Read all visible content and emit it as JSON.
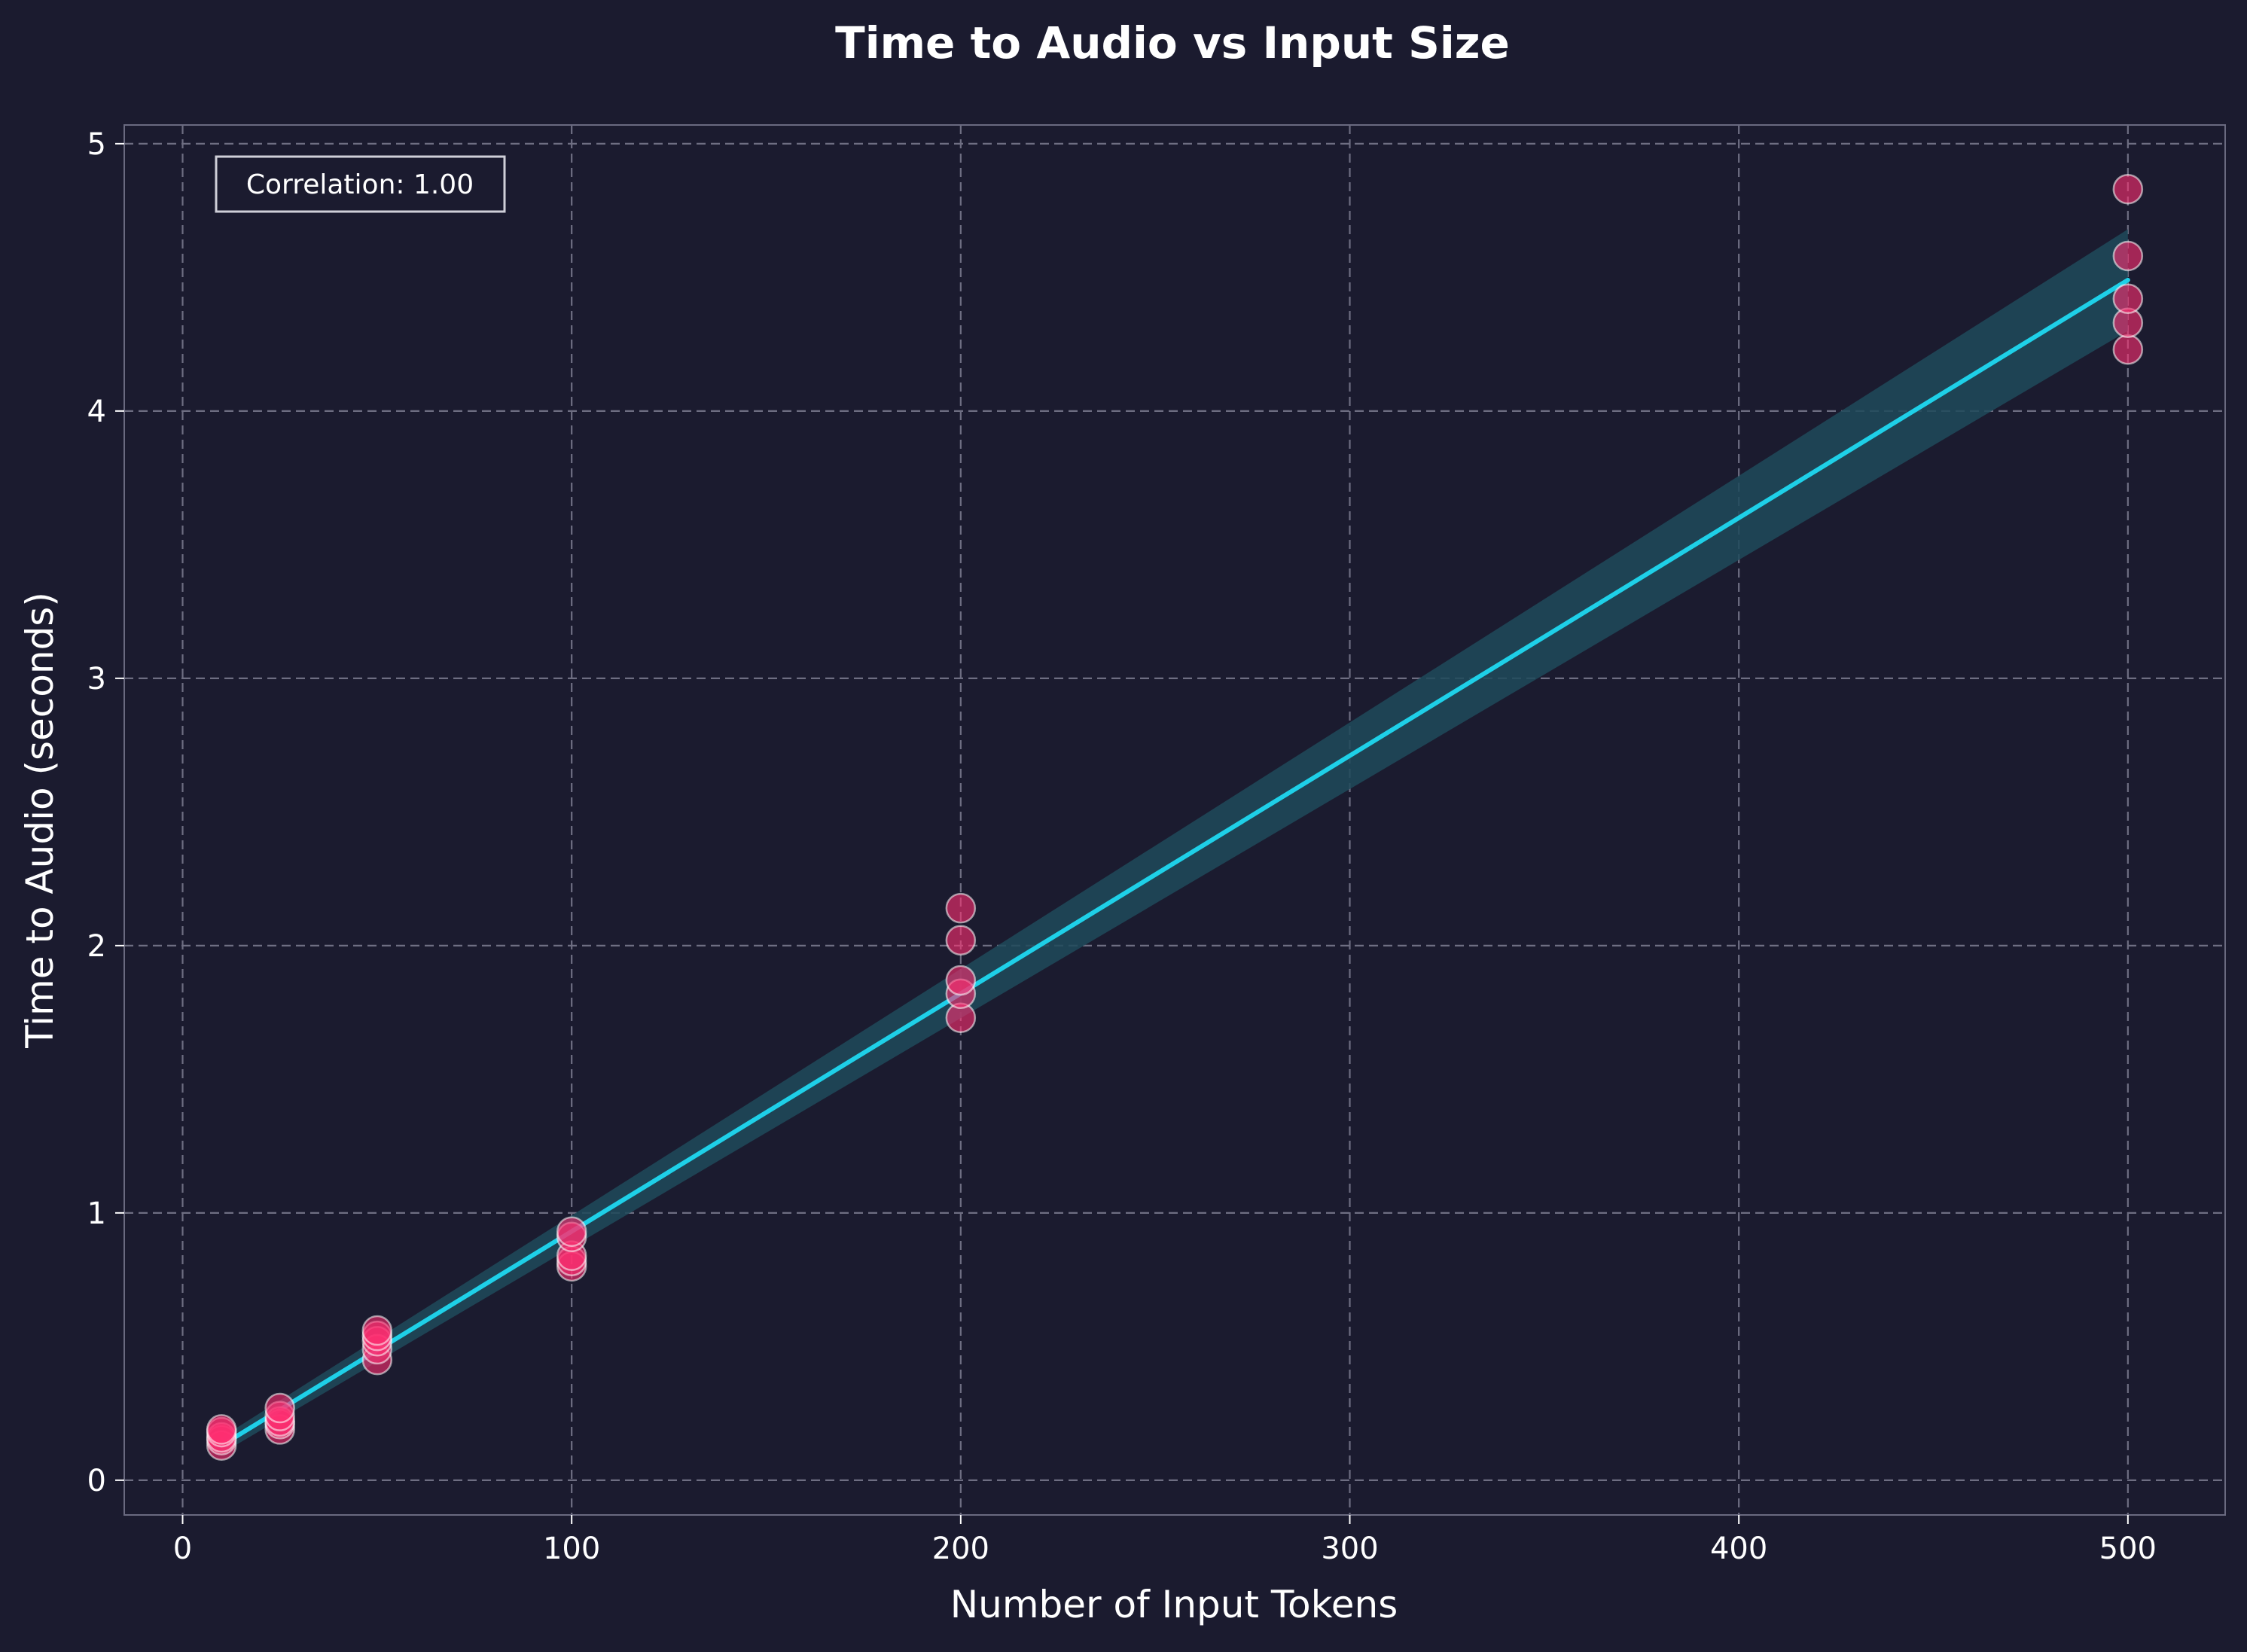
{
  "chart_data": {
    "type": "scatter",
    "title": "Time to Audio vs Input Size",
    "xlabel": "Number of Input Tokens",
    "ylabel": "Time to Audio (seconds)",
    "xlim": [
      -15,
      525
    ],
    "ylim": [
      -0.13,
      5.07
    ],
    "xticks": [
      0,
      100,
      200,
      300,
      400,
      500
    ],
    "yticks": [
      0,
      1,
      2,
      3,
      4,
      5
    ],
    "grid": true,
    "annotation": {
      "text": "Correlation: 1.00",
      "placement": "top-left"
    },
    "points": {
      "color": "#ff2e72",
      "edge_color": "#ffffff",
      "values": [
        {
          "x": 10,
          "y": 0.13
        },
        {
          "x": 10,
          "y": 0.15
        },
        {
          "x": 10,
          "y": 0.16
        },
        {
          "x": 10,
          "y": 0.18
        },
        {
          "x": 10,
          "y": 0.19
        },
        {
          "x": 25,
          "y": 0.19
        },
        {
          "x": 25,
          "y": 0.21
        },
        {
          "x": 25,
          "y": 0.22
        },
        {
          "x": 25,
          "y": 0.24
        },
        {
          "x": 25,
          "y": 0.27
        },
        {
          "x": 50,
          "y": 0.45
        },
        {
          "x": 50,
          "y": 0.49
        },
        {
          "x": 50,
          "y": 0.52
        },
        {
          "x": 50,
          "y": 0.54
        },
        {
          "x": 50,
          "y": 0.56
        },
        {
          "x": 100,
          "y": 0.8
        },
        {
          "x": 100,
          "y": 0.82
        },
        {
          "x": 100,
          "y": 0.84
        },
        {
          "x": 100,
          "y": 0.91
        },
        {
          "x": 100,
          "y": 0.93
        },
        {
          "x": 200,
          "y": 1.73
        },
        {
          "x": 200,
          "y": 1.82
        },
        {
          "x": 200,
          "y": 1.87
        },
        {
          "x": 200,
          "y": 2.02
        },
        {
          "x": 200,
          "y": 2.14
        },
        {
          "x": 500,
          "y": 4.23
        },
        {
          "x": 500,
          "y": 4.33
        },
        {
          "x": 500,
          "y": 4.42
        },
        {
          "x": 500,
          "y": 4.58
        },
        {
          "x": 500,
          "y": 4.83
        }
      ]
    },
    "fit_line": {
      "color": "#1ed0e8",
      "band_color": "#1f4a5a",
      "x": [
        10,
        500
      ],
      "y": [
        0.13,
        4.49
      ],
      "band_lower": [
        0.1,
        4.3
      ],
      "band_upper": [
        0.16,
        4.68
      ]
    }
  }
}
